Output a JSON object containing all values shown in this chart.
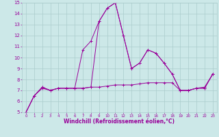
{
  "xlabel": "Windchill (Refroidissement éolien,°C)",
  "x": [
    0,
    1,
    2,
    3,
    4,
    5,
    6,
    7,
    8,
    9,
    10,
    11,
    12,
    13,
    14,
    15,
    16,
    17,
    18,
    19,
    20,
    21,
    22,
    23
  ],
  "line1": [
    5.0,
    6.5,
    7.2,
    7.0,
    7.2,
    7.2,
    7.2,
    10.7,
    11.5,
    13.3,
    14.5,
    15.0,
    12.0,
    9.0,
    9.5,
    10.7,
    10.4,
    9.5,
    8.5,
    7.0,
    7.0,
    7.2,
    7.2,
    8.5
  ],
  "line2": [
    5.0,
    6.5,
    7.3,
    7.0,
    7.2,
    7.2,
    7.2,
    7.2,
    7.3,
    7.3,
    7.4,
    7.5,
    7.5,
    7.5,
    7.6,
    7.7,
    7.7,
    7.7,
    7.7,
    7.0,
    7.0,
    7.2,
    7.3,
    8.5
  ],
  "line3": [
    5.0,
    6.5,
    7.3,
    7.0,
    7.2,
    7.2,
    7.2,
    7.2,
    7.3,
    13.3,
    14.5,
    15.0,
    12.0,
    9.0,
    9.5,
    10.7,
    10.4,
    9.5,
    8.5,
    7.0,
    7.0,
    7.2,
    7.2,
    8.5
  ],
  "ylim": [
    5,
    15
  ],
  "yticks": [
    5,
    6,
    7,
    8,
    9,
    10,
    11,
    12,
    13,
    14,
    15
  ],
  "xlim": [
    -0.5,
    23.5
  ],
  "xticks": [
    0,
    1,
    2,
    3,
    4,
    5,
    6,
    7,
    8,
    9,
    10,
    11,
    12,
    13,
    14,
    15,
    16,
    17,
    18,
    19,
    20,
    21,
    22,
    23
  ],
  "line_color": "#990099",
  "bg_color": "#cce8e8",
  "grid_color": "#aacccc",
  "label_color": "#990099",
  "tick_color": "#990099"
}
